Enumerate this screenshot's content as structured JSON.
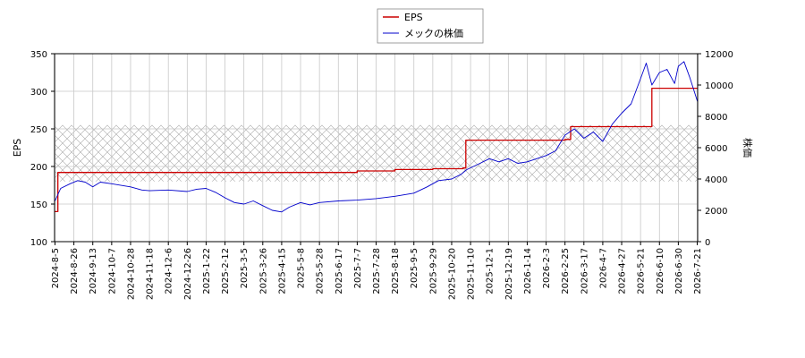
{
  "chart_data": {
    "type": "line",
    "legend": {
      "placement": "top-center",
      "entries": [
        "EPS",
        "メックの株価"
      ]
    },
    "grid": true,
    "hatched_band": {
      "axis": "left",
      "range": [
        180,
        255
      ],
      "color": "#b0b0b0"
    },
    "left_axis": {
      "label": "EPS",
      "ylim": [
        100,
        350
      ],
      "ticks": [
        "100",
        "150",
        "200",
        "250",
        "300",
        "350"
      ]
    },
    "right_axis": {
      "label": "株価",
      "ylim": [
        0,
        12000
      ],
      "ticks": [
        "0",
        "2000",
        "4000",
        "6000",
        "8000",
        "10000",
        "12000"
      ]
    },
    "x_tick_labels": [
      "2024-8-5",
      "2024-8-26",
      "2024-9-13",
      "2024-10-7",
      "2024-10-28",
      "2024-11-18",
      "2024-12-6",
      "2024-12-26",
      "2025-1-22",
      "2025-2-12",
      "2025-3-5",
      "2025-3-26",
      "2025-4-15",
      "2025-5-8",
      "2025-5-28",
      "2025-6-17",
      "2025-7-7",
      "2025-7-28",
      "2025-8-18",
      "2025-9-5",
      "2025-9-29",
      "2025-10-20",
      "2025-11-10",
      "2025-12-1",
      "2025-12-19",
      "2026-1-14",
      "2026-2-3",
      "2026-2-25",
      "2026-3-17",
      "2026-4-7",
      "2026-4-27",
      "2026-5-21",
      "2026-6-10",
      "2026-6-30",
      "2026-7-21"
    ],
    "series": [
      {
        "name": "EPS",
        "axis": "left",
        "color": "#cc0000",
        "step": true,
        "points": [
          {
            "i": 0,
            "y": 140
          },
          {
            "i": 0.15,
            "y": 192
          },
          {
            "i": 6,
            "y": 192
          },
          {
            "i": 10,
            "y": 192
          },
          {
            "i": 14,
            "y": 192
          },
          {
            "i": 16,
            "y": 194
          },
          {
            "i": 18,
            "y": 196
          },
          {
            "i": 20,
            "y": 197
          },
          {
            "i": 21.6,
            "y": 198
          },
          {
            "i": 21.75,
            "y": 235
          },
          {
            "i": 27,
            "y": 236
          },
          {
            "i": 27.3,
            "y": 253
          },
          {
            "i": 31.5,
            "y": 253
          },
          {
            "i": 31.6,
            "y": 304
          },
          {
            "i": 34.6,
            "y": 304
          }
        ]
      },
      {
        "name": "メックの株価",
        "axis": "right",
        "color": "#0000cc",
        "points": [
          {
            "i": 0,
            "y": 2600
          },
          {
            "i": 0.3,
            "y": 3400
          },
          {
            "i": 0.8,
            "y": 3700
          },
          {
            "i": 1.2,
            "y": 3900
          },
          {
            "i": 1.6,
            "y": 3800
          },
          {
            "i": 2,
            "y": 3500
          },
          {
            "i": 2.4,
            "y": 3800
          },
          {
            "i": 3,
            "y": 3700
          },
          {
            "i": 4,
            "y": 3500
          },
          {
            "i": 4.6,
            "y": 3300
          },
          {
            "i": 5,
            "y": 3250
          },
          {
            "i": 6,
            "y": 3300
          },
          {
            "i": 7,
            "y": 3200
          },
          {
            "i": 7.5,
            "y": 3350
          },
          {
            "i": 8,
            "y": 3400
          },
          {
            "i": 8.5,
            "y": 3150
          },
          {
            "i": 9,
            "y": 2800
          },
          {
            "i": 9.5,
            "y": 2500
          },
          {
            "i": 10,
            "y": 2400
          },
          {
            "i": 10.5,
            "y": 2600
          },
          {
            "i": 11,
            "y": 2300
          },
          {
            "i": 11.5,
            "y": 2000
          },
          {
            "i": 12,
            "y": 1900
          },
          {
            "i": 12.4,
            "y": 2200
          },
          {
            "i": 13,
            "y": 2500
          },
          {
            "i": 13.5,
            "y": 2350
          },
          {
            "i": 14,
            "y": 2500
          },
          {
            "i": 15,
            "y": 2600
          },
          {
            "i": 16,
            "y": 2650
          },
          {
            "i": 17,
            "y": 2750
          },
          {
            "i": 18,
            "y": 2900
          },
          {
            "i": 19,
            "y": 3100
          },
          {
            "i": 19.7,
            "y": 3500
          },
          {
            "i": 20.3,
            "y": 3900
          },
          {
            "i": 21,
            "y": 4000
          },
          {
            "i": 21.5,
            "y": 4300
          },
          {
            "i": 21.8,
            "y": 4600
          },
          {
            "i": 22.5,
            "y": 5000
          },
          {
            "i": 23,
            "y": 5300
          },
          {
            "i": 23.5,
            "y": 5100
          },
          {
            "i": 24,
            "y": 5300
          },
          {
            "i": 24.5,
            "y": 5000
          },
          {
            "i": 25,
            "y": 5100
          },
          {
            "i": 25.5,
            "y": 5300
          },
          {
            "i": 26,
            "y": 5500
          },
          {
            "i": 26.5,
            "y": 5800
          },
          {
            "i": 27,
            "y": 6800
          },
          {
            "i": 27.5,
            "y": 7200
          },
          {
            "i": 28,
            "y": 6600
          },
          {
            "i": 28.5,
            "y": 7000
          },
          {
            "i": 29,
            "y": 6400
          },
          {
            "i": 29.5,
            "y": 7500
          },
          {
            "i": 30,
            "y": 8200
          },
          {
            "i": 30.5,
            "y": 8800
          },
          {
            "i": 31,
            "y": 10400
          },
          {
            "i": 31.3,
            "y": 11400
          },
          {
            "i": 31.6,
            "y": 10000
          },
          {
            "i": 32,
            "y": 10800
          },
          {
            "i": 32.4,
            "y": 11000
          },
          {
            "i": 32.8,
            "y": 10100
          },
          {
            "i": 33,
            "y": 11200
          },
          {
            "i": 33.3,
            "y": 11500
          },
          {
            "i": 33.6,
            "y": 10500
          },
          {
            "i": 34,
            "y": 9000
          },
          {
            "i": 34.3,
            "y": 8300
          },
          {
            "i": 34.6,
            "y": 9300
          }
        ]
      }
    ]
  }
}
